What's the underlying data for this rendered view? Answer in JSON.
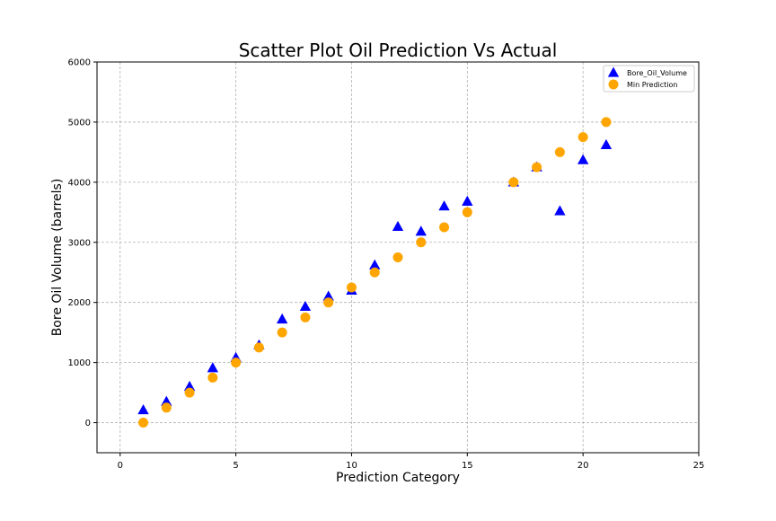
{
  "chart_data": {
    "type": "scatter",
    "title": "Scatter Plot Oil Prediction Vs Actual",
    "xlabel": "Prediction Category",
    "ylabel": "Bore Oil Volume (barrels)",
    "xlim": [
      -1,
      25
    ],
    "ylim": [
      -500,
      6000
    ],
    "xticks": [
      0,
      5,
      10,
      15,
      20,
      25
    ],
    "yticks": [
      0,
      1000,
      2000,
      3000,
      4000,
      5000,
      6000
    ],
    "grid": true,
    "legend_position": "top-right",
    "series": [
      {
        "name": "Bore_Oil_Volume",
        "marker": "triangle",
        "color": "#0000ff",
        "x": [
          1,
          2,
          3,
          4,
          5,
          6,
          7,
          8,
          9,
          10,
          11,
          12,
          13,
          14,
          15,
          17,
          18,
          19,
          20,
          21
        ],
        "y": [
          210,
          350,
          600,
          910,
          1080,
          1290,
          1720,
          1930,
          2100,
          2200,
          2620,
          3260,
          3180,
          3600,
          3680,
          4000,
          4250,
          3520,
          4370,
          4620
        ]
      },
      {
        "name": "Min Prediction",
        "marker": "circle",
        "color": "#ffa500",
        "x": [
          1,
          2,
          3,
          4,
          5,
          6,
          7,
          8,
          9,
          10,
          11,
          12,
          13,
          14,
          15,
          17,
          18,
          19,
          20,
          21
        ],
        "y": [
          0,
          250,
          500,
          750,
          1000,
          1250,
          1500,
          1750,
          2000,
          2250,
          2500,
          2750,
          3000,
          3250,
          3500,
          4000,
          4250,
          4500,
          4750,
          5000
        ]
      }
    ]
  }
}
